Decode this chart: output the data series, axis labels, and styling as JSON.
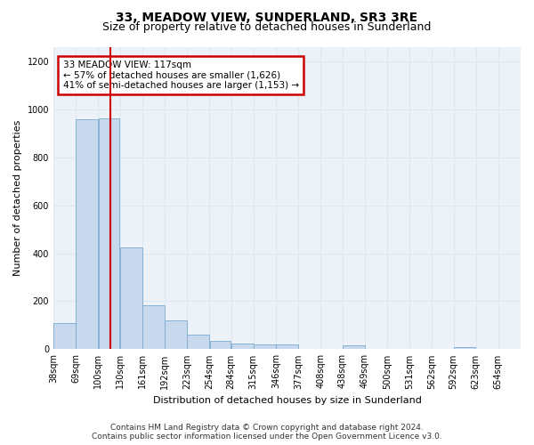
{
  "title": "33, MEADOW VIEW, SUNDERLAND, SR3 3RE",
  "subtitle": "Size of property relative to detached houses in Sunderland",
  "xlabel": "Distribution of detached houses by size in Sunderland",
  "ylabel": "Number of detached properties",
  "footer_line1": "Contains HM Land Registry data © Crown copyright and database right 2024.",
  "footer_line2": "Contains public sector information licensed under the Open Government Licence v3.0.",
  "annotation_line1": "33 MEADOW VIEW: 117sqm",
  "annotation_line2": "← 57% of detached houses are smaller (1,626)",
  "annotation_line3": "41% of semi-detached houses are larger (1,153) →",
  "bar_left_edges": [
    38,
    69,
    100,
    130,
    161,
    192,
    223,
    254,
    284,
    315,
    346,
    377,
    408,
    438,
    469,
    500,
    531,
    562,
    592,
    623
  ],
  "bar_widths": [
    31,
    31,
    30,
    31,
    31,
    31,
    31,
    30,
    31,
    31,
    31,
    31,
    30,
    31,
    31,
    31,
    31,
    30,
    31,
    31
  ],
  "bar_heights": [
    110,
    957,
    960,
    425,
    185,
    120,
    60,
    35,
    25,
    20,
    20,
    0,
    0,
    15,
    0,
    0,
    0,
    0,
    10,
    0
  ],
  "bar_color": "#c8d8ed",
  "bar_edge_color": "#7aaad0",
  "vline_color": "#cc0000",
  "vline_x": 117,
  "xlim": [
    38,
    685
  ],
  "ylim": [
    0,
    1260
  ],
  "yticks": [
    0,
    200,
    400,
    600,
    800,
    1000,
    1200
  ],
  "xtick_labels": [
    "38sqm",
    "69sqm",
    "100sqm",
    "130sqm",
    "161sqm",
    "192sqm",
    "223sqm",
    "254sqm",
    "284sqm",
    "315sqm",
    "346sqm",
    "377sqm",
    "408sqm",
    "438sqm",
    "469sqm",
    "500sqm",
    "531sqm",
    "562sqm",
    "592sqm",
    "623sqm",
    "654sqm"
  ],
  "grid_color": "#dde8f0",
  "bg_color": "#edf2f8",
  "annotation_box_facecolor": "#ffffff",
  "annotation_box_edgecolor": "#cc0000",
  "title_fontsize": 10,
  "subtitle_fontsize": 9,
  "axis_label_fontsize": 8,
  "tick_fontsize": 7,
  "annotation_fontsize": 7.5,
  "footer_fontsize": 6.5
}
